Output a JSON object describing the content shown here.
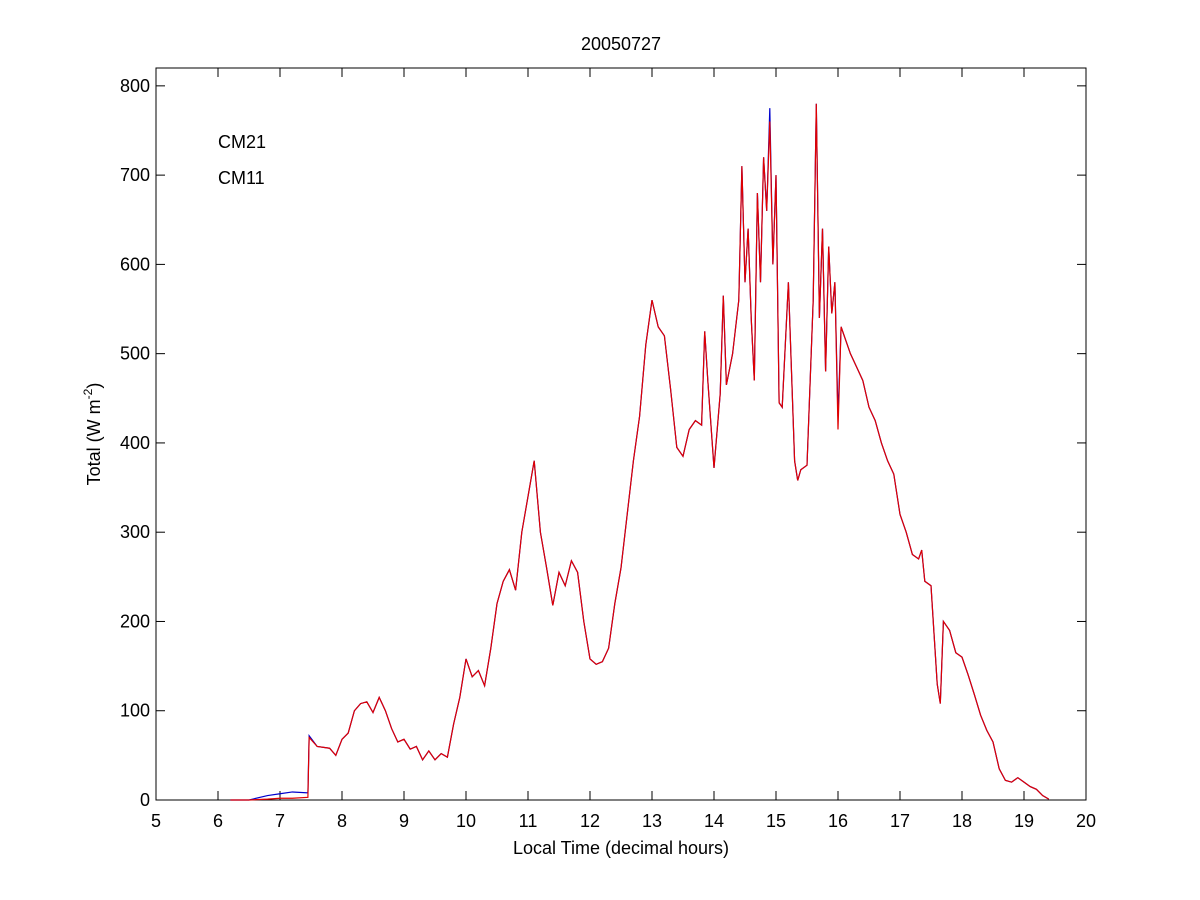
{
  "chart_data": {
    "type": "line",
    "title": "20050727",
    "xlabel": "Local Time (decimal hours)",
    "ylabel": {
      "text": "Total (W m",
      "superscript": "-2",
      "suffix": ")"
    },
    "xlim": [
      5,
      20
    ],
    "xticks": [
      5,
      6,
      7,
      8,
      9,
      10,
      11,
      12,
      13,
      14,
      15,
      16,
      17,
      18,
      19,
      20
    ],
    "ylim": [
      0,
      820
    ],
    "yticks": [
      0,
      100,
      200,
      300,
      400,
      500,
      600,
      700,
      800
    ],
    "legend": "upper-left",
    "x": [
      6.2,
      6.5,
      6.8,
      7.0,
      7.2,
      7.45,
      7.47,
      7.6,
      7.8,
      7.9,
      8.0,
      8.1,
      8.2,
      8.3,
      8.4,
      8.5,
      8.6,
      8.7,
      8.8,
      8.9,
      9.0,
      9.1,
      9.2,
      9.3,
      9.4,
      9.5,
      9.6,
      9.7,
      9.8,
      9.9,
      10.0,
      10.1,
      10.2,
      10.3,
      10.4,
      10.5,
      10.6,
      10.7,
      10.8,
      10.9,
      11.0,
      11.1,
      11.2,
      11.3,
      11.4,
      11.5,
      11.6,
      11.7,
      11.8,
      11.9,
      12.0,
      12.1,
      12.2,
      12.3,
      12.4,
      12.5,
      12.6,
      12.7,
      12.8,
      12.9,
      13.0,
      13.1,
      13.2,
      13.3,
      13.4,
      13.5,
      13.6,
      13.7,
      13.8,
      13.85,
      13.9,
      14.0,
      14.1,
      14.15,
      14.2,
      14.3,
      14.4,
      14.45,
      14.5,
      14.55,
      14.6,
      14.65,
      14.7,
      14.75,
      14.8,
      14.85,
      14.9,
      14.95,
      15.0,
      15.05,
      15.1,
      15.2,
      15.3,
      15.35,
      15.4,
      15.5,
      15.6,
      15.65,
      15.7,
      15.75,
      15.8,
      15.85,
      15.9,
      15.95,
      16.0,
      16.05,
      16.2,
      16.3,
      16.4,
      16.5,
      16.6,
      16.7,
      16.8,
      16.9,
      17.0,
      17.1,
      17.2,
      17.3,
      17.35,
      17.4,
      17.5,
      17.6,
      17.65,
      17.7,
      17.8,
      17.9,
      18.0,
      18.1,
      18.2,
      18.3,
      18.4,
      18.5,
      18.6,
      18.7,
      18.8,
      18.9,
      19.0,
      19.1,
      19.2,
      19.3,
      19.4
    ],
    "series": [
      {
        "name": "CM21",
        "color": "#0000cc",
        "values": [
          0,
          0,
          5,
          7,
          9,
          8,
          72,
          60,
          58,
          50,
          68,
          75,
          100,
          108,
          110,
          98,
          115,
          100,
          80,
          65,
          68,
          57,
          60,
          45,
          55,
          45,
          52,
          48,
          85,
          115,
          158,
          138,
          145,
          128,
          170,
          220,
          245,
          258,
          235,
          300,
          340,
          380,
          300,
          260,
          218,
          255,
          240,
          268,
          255,
          200,
          158,
          152,
          155,
          170,
          220,
          260,
          320,
          380,
          430,
          510,
          560,
          530,
          520,
          460,
          395,
          385,
          415,
          425,
          420,
          525,
          470,
          372,
          455,
          565,
          465,
          500,
          560,
          710,
          580,
          640,
          540,
          470,
          680,
          580,
          720,
          660,
          775,
          600,
          700,
          445,
          440,
          580,
          380,
          358,
          370,
          375,
          560,
          780,
          540,
          640,
          480,
          620,
          545,
          580,
          430,
          530,
          500,
          485,
          470,
          440,
          425,
          400,
          380,
          365,
          320,
          300,
          275,
          270,
          280,
          245,
          240,
          130,
          108,
          200,
          190,
          165,
          160,
          140,
          118,
          95,
          78,
          65,
          35,
          22,
          20,
          25,
          20,
          15,
          12,
          5,
          1
        ]
      },
      {
        "name": "CM11",
        "color": "#e00000",
        "values": [
          0,
          0,
          1,
          2,
          2,
          3,
          70,
          60,
          58,
          50,
          68,
          75,
          100,
          108,
          110,
          98,
          115,
          100,
          80,
          65,
          68,
          57,
          60,
          45,
          55,
          45,
          52,
          48,
          85,
          115,
          158,
          138,
          145,
          128,
          170,
          220,
          245,
          258,
          235,
          300,
          340,
          380,
          300,
          260,
          218,
          255,
          240,
          268,
          255,
          200,
          158,
          152,
          155,
          170,
          220,
          260,
          320,
          380,
          430,
          510,
          560,
          530,
          520,
          460,
          395,
          385,
          415,
          425,
          420,
          525,
          470,
          372,
          455,
          565,
          465,
          500,
          560,
          710,
          580,
          640,
          540,
          470,
          680,
          580,
          720,
          660,
          760,
          600,
          700,
          445,
          440,
          580,
          380,
          358,
          370,
          375,
          560,
          780,
          540,
          640,
          480,
          620,
          545,
          580,
          415,
          530,
          500,
          485,
          470,
          440,
          425,
          400,
          380,
          365,
          320,
          300,
          275,
          270,
          280,
          245,
          240,
          130,
          108,
          200,
          190,
          165,
          160,
          140,
          118,
          95,
          78,
          65,
          35,
          22,
          20,
          25,
          20,
          15,
          12,
          5,
          1
        ]
      }
    ]
  }
}
